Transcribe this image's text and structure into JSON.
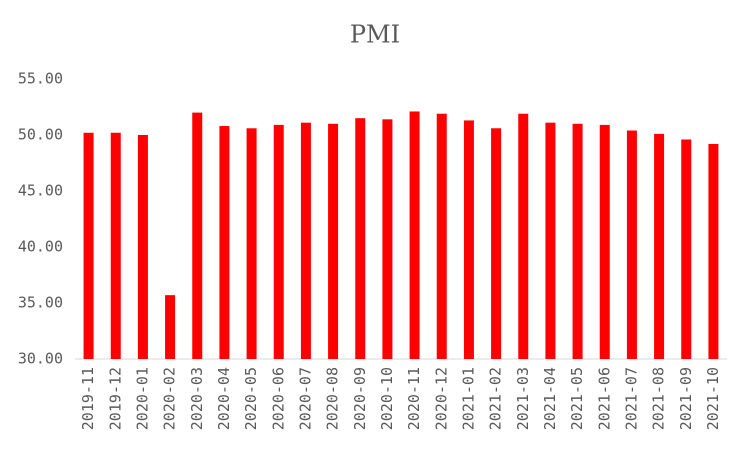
{
  "chart_data": {
    "type": "bar",
    "title": "PMI",
    "categories": [
      "2019-11",
      "2019-12",
      "2020-01",
      "2020-02",
      "2020-03",
      "2020-04",
      "2020-05",
      "2020-06",
      "2020-07",
      "2020-08",
      "2020-09",
      "2020-10",
      "2020-11",
      "2020-12",
      "2021-01",
      "2021-02",
      "2021-03",
      "2021-04",
      "2021-05",
      "2021-06",
      "2021-07",
      "2021-08",
      "2021-09",
      "2021-10"
    ],
    "values": [
      50.2,
      50.2,
      50.0,
      35.7,
      52.0,
      50.8,
      50.6,
      50.9,
      51.1,
      51.0,
      51.5,
      51.4,
      52.1,
      51.9,
      51.3,
      50.6,
      51.9,
      51.1,
      51.0,
      50.9,
      50.4,
      50.1,
      49.6,
      49.2
    ],
    "color": "#ff0000",
    "ylim": [
      30,
      55
    ],
    "yticks": [
      {
        "value": 30,
        "label": "30.00"
      },
      {
        "value": 35,
        "label": "35.00"
      },
      {
        "value": 40,
        "label": "40.00"
      },
      {
        "value": 45,
        "label": "45.00"
      },
      {
        "value": 50,
        "label": "50.00"
      },
      {
        "value": 55,
        "label": "55.00"
      }
    ],
    "grid": false
  }
}
